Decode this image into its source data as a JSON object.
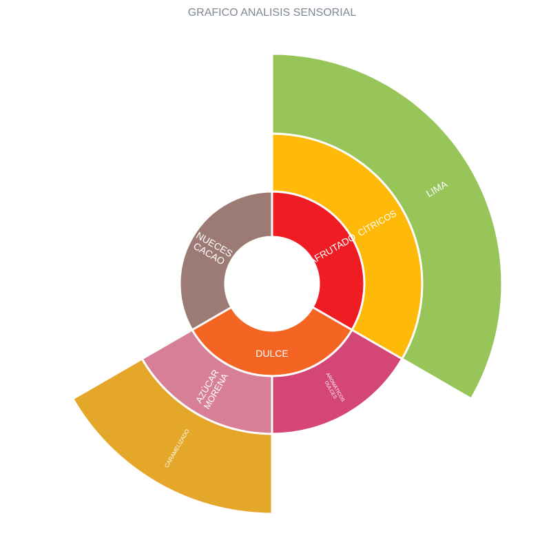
{
  "chart_data": {
    "type": "sunburst",
    "title": "GRAFICO ANALISIS SENSORIAL",
    "segments": [
      {
        "id": "afrutado",
        "lines": [
          "AFRUTADO"
        ],
        "level": 1,
        "start": 0,
        "end": 120,
        "color": "#ef1c24"
      },
      {
        "id": "dulce",
        "lines": [
          "DULCE"
        ],
        "level": 1,
        "start": 120,
        "end": 240,
        "color": "#f46524"
      },
      {
        "id": "nueces-cacao",
        "lines": [
          "NUECES",
          "CACAO"
        ],
        "level": 1,
        "start": 240,
        "end": 360,
        "color": "#9c7b75"
      },
      {
        "id": "citricos",
        "lines": [
          "CÍTRICOS"
        ],
        "level": 2,
        "start": 0,
        "end": 120,
        "color": "#ffb909"
      },
      {
        "id": "aromaticos-dulces",
        "lines": [
          "AROMÁTICOS",
          "DULCES"
        ],
        "level": 2,
        "start": 120,
        "end": 180,
        "color": "#d44676"
      },
      {
        "id": "azucar-morena",
        "lines": [
          "AZÚCAR",
          "MORENA"
        ],
        "level": 2,
        "start": 180,
        "end": 240,
        "color": "#d67f97"
      },
      {
        "id": "lima",
        "lines": [
          "LIMA"
        ],
        "level": 3,
        "start": 0,
        "end": 120,
        "color": "#97c55a"
      },
      {
        "id": "caramelizado",
        "lines": [
          "CARAMELIZADO"
        ],
        "level": 3,
        "start": 180,
        "end": 240,
        "color": "#e5a72a"
      }
    ]
  }
}
